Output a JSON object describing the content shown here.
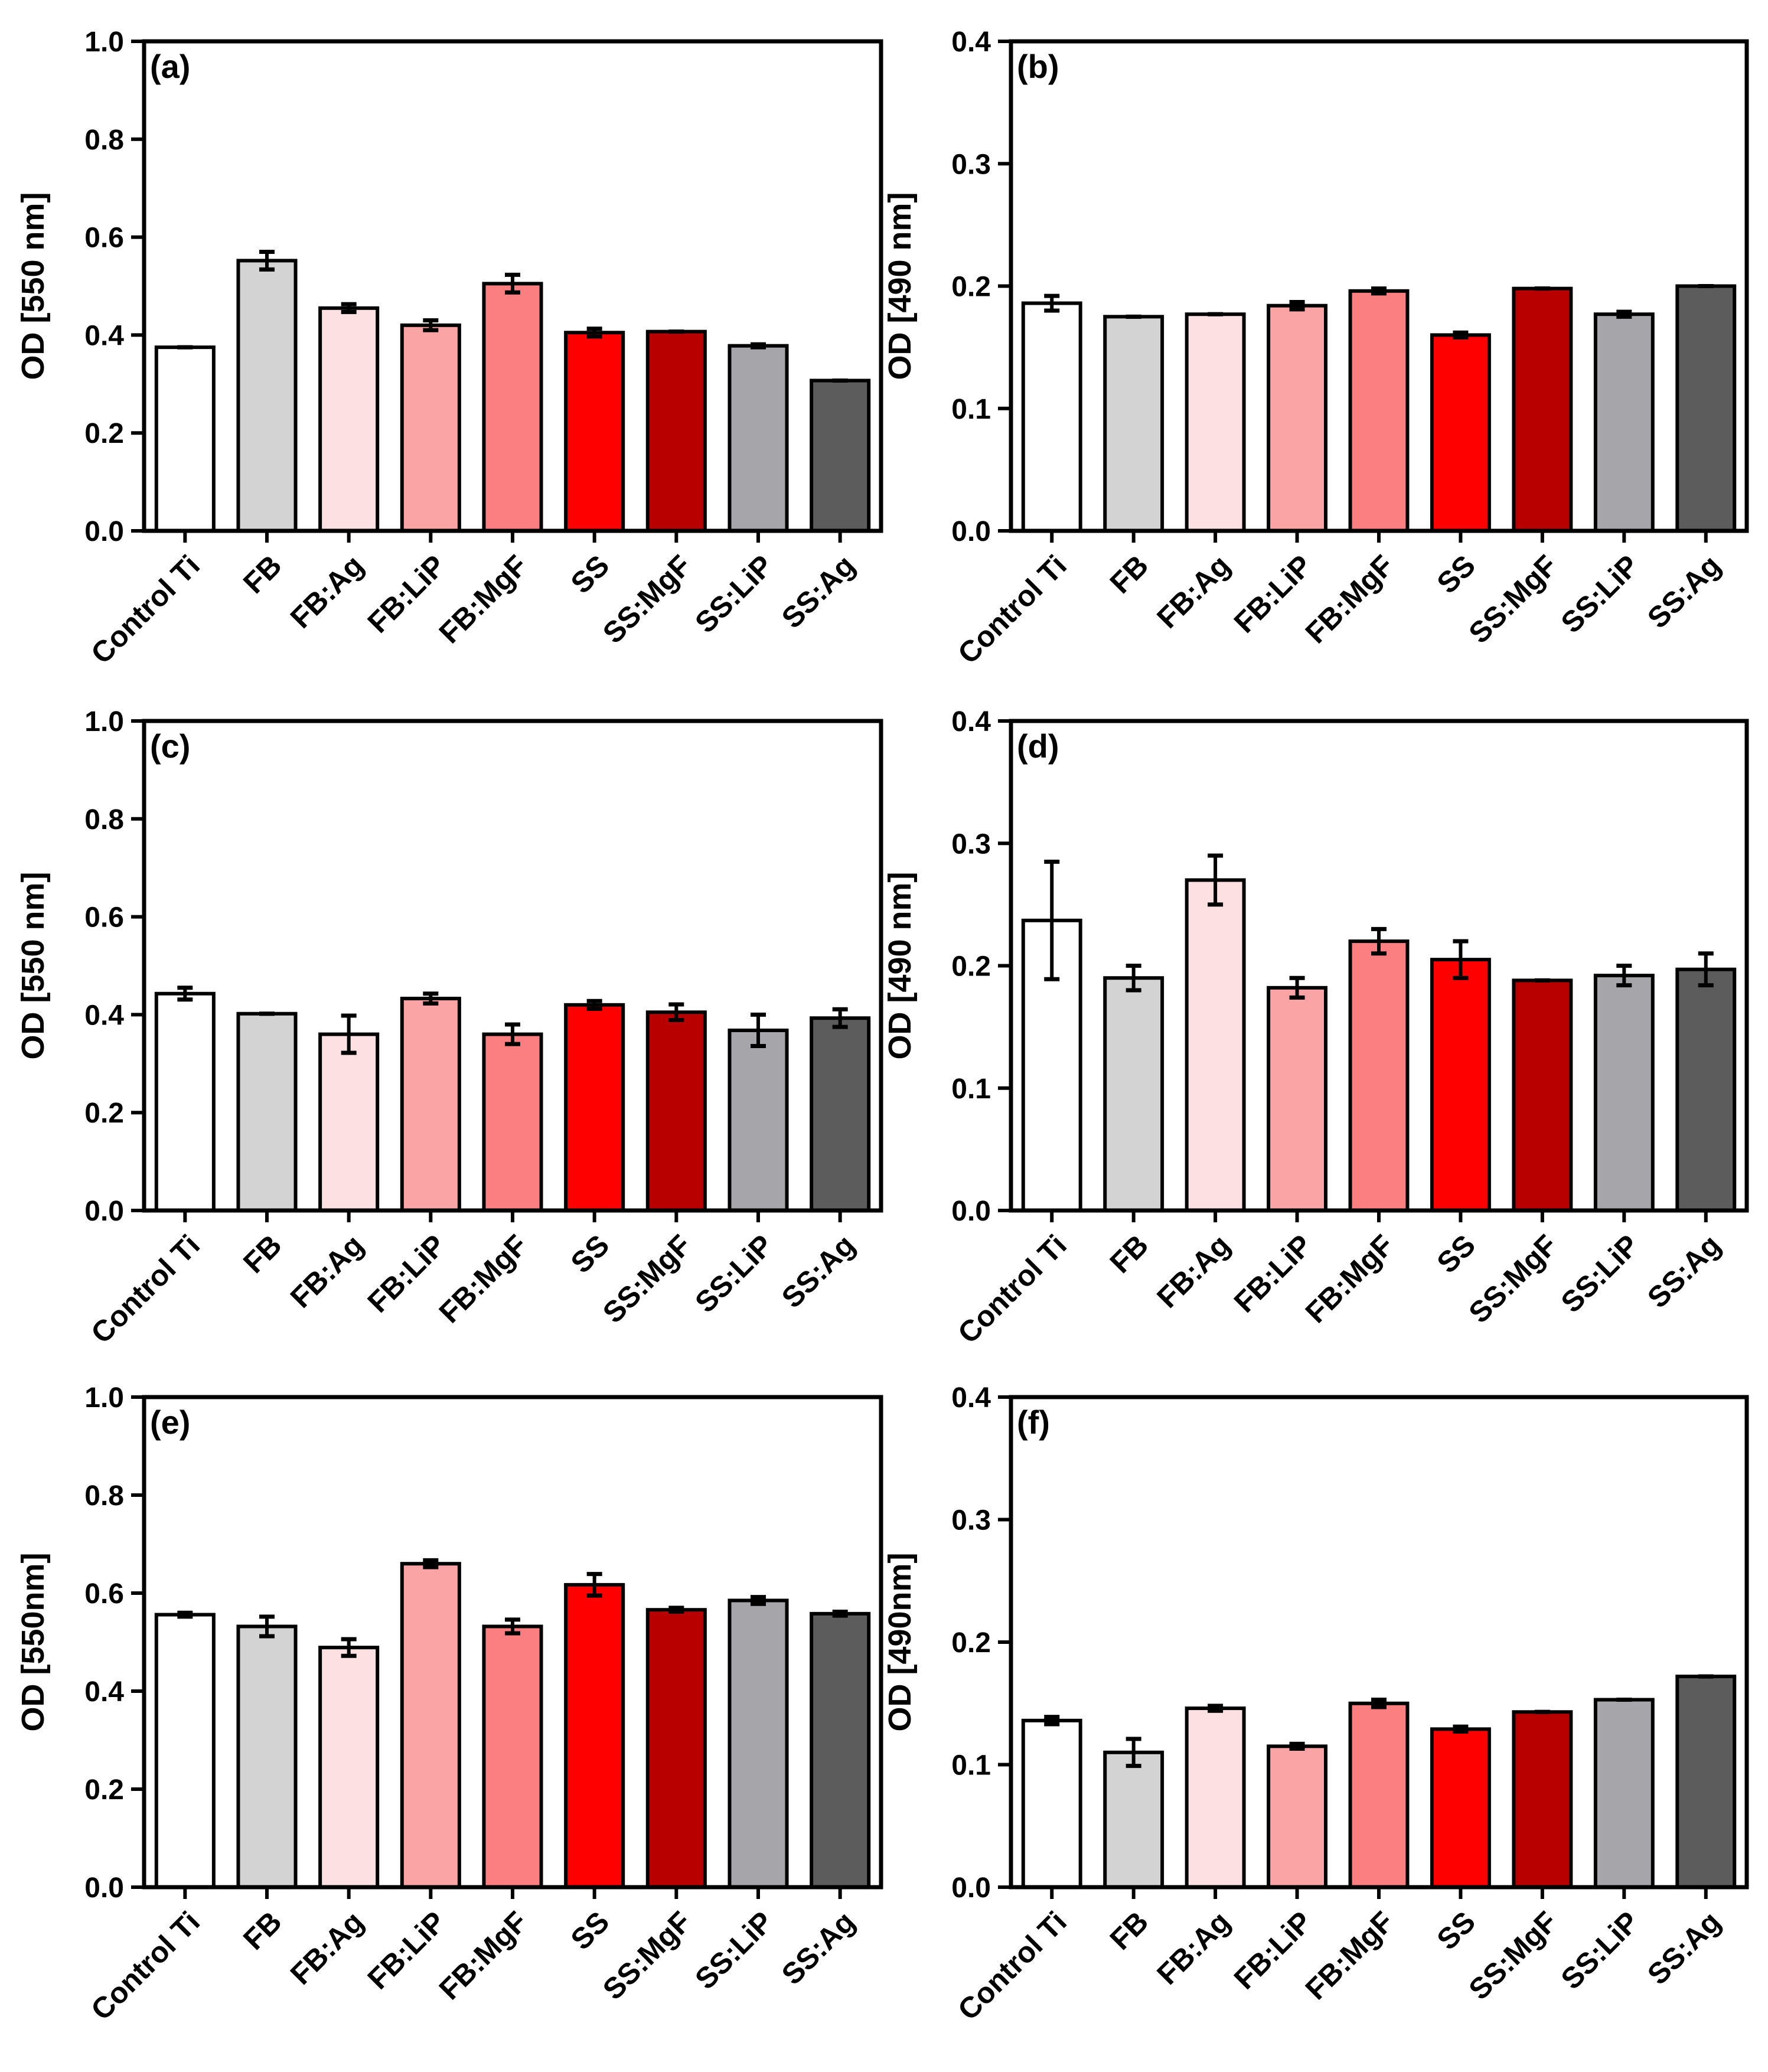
{
  "figure": {
    "categories": [
      "Control Ti",
      "FB",
      "FB:Ag",
      "FB:LiP",
      "FB:MgF",
      "SS",
      "SS:MgF",
      "SS:LiP",
      "SS:Ag"
    ],
    "colors": [
      "#ffffff",
      "#d3d3d3",
      "#fde0e2",
      "#fba4a6",
      "#fb7f80",
      "#fe0000",
      "#b80000",
      "#a6a5aa",
      "#5c5c5c"
    ]
  },
  "chart_data": [
    {
      "panel": "(a)",
      "type": "bar",
      "title": "",
      "xlabel": "",
      "ylabel": "OD [550 nm]",
      "ylim": [
        0,
        1.0
      ],
      "yticks": [
        "0.0",
        "0.2",
        "0.4",
        "0.6",
        "0.8",
        "1.0"
      ],
      "values": [
        0.375,
        0.552,
        0.455,
        0.42,
        0.505,
        0.405,
        0.407,
        0.378,
        0.307
      ],
      "errors": [
        0.0,
        0.018,
        0.008,
        0.01,
        0.018,
        0.008,
        0.0,
        0.003,
        0.0
      ]
    },
    {
      "panel": "(b)",
      "type": "bar",
      "title": "",
      "xlabel": "",
      "ylabel": "OD [490 nm]",
      "ylim": [
        0,
        0.4
      ],
      "yticks": [
        "0.0",
        "0.1",
        "0.2",
        "0.3",
        "0.4"
      ],
      "values": [
        0.186,
        0.175,
        0.177,
        0.184,
        0.196,
        0.16,
        0.198,
        0.177,
        0.2
      ],
      "errors": [
        0.006,
        0.0,
        0.0,
        0.003,
        0.002,
        0.002,
        0.0,
        0.002,
        0.0
      ]
    },
    {
      "panel": "(c)",
      "type": "bar",
      "title": "",
      "xlabel": "",
      "ylabel": "OD [550 nm]",
      "ylim": [
        0,
        1.0
      ],
      "yticks": [
        "0.0",
        "0.2",
        "0.4",
        "0.6",
        "0.8",
        "1.0"
      ],
      "values": [
        0.443,
        0.402,
        0.36,
        0.433,
        0.36,
        0.42,
        0.405,
        0.368,
        0.393
      ],
      "errors": [
        0.012,
        0.0,
        0.038,
        0.01,
        0.02,
        0.008,
        0.016,
        0.032,
        0.018
      ]
    },
    {
      "panel": "(d)",
      "type": "bar",
      "title": "",
      "xlabel": "",
      "ylabel": "OD [490 nm]",
      "ylim": [
        0,
        0.4
      ],
      "yticks": [
        "0.0",
        "0.1",
        "0.2",
        "0.3",
        "0.4"
      ],
      "values": [
        0.237,
        0.19,
        0.27,
        0.182,
        0.22,
        0.205,
        0.188,
        0.192,
        0.197
      ],
      "errors": [
        0.048,
        0.01,
        0.02,
        0.008,
        0.01,
        0.015,
        0.0,
        0.008,
        0.013
      ]
    },
    {
      "panel": "(e)",
      "type": "bar",
      "title": "",
      "xlabel": "",
      "ylabel": "OD [550nm]",
      "ylim": [
        0,
        1.0
      ],
      "yticks": [
        "0.0",
        "0.2",
        "0.4",
        "0.6",
        "0.8",
        "1.0"
      ],
      "values": [
        0.556,
        0.532,
        0.489,
        0.66,
        0.532,
        0.617,
        0.566,
        0.585,
        0.558
      ],
      "errors": [
        0.004,
        0.02,
        0.017,
        0.007,
        0.014,
        0.022,
        0.004,
        0.007,
        0.004
      ]
    },
    {
      "panel": "(f)",
      "type": "bar",
      "title": "",
      "xlabel": "",
      "ylabel": "OD [490nm]",
      "ylim": [
        0,
        0.4
      ],
      "yticks": [
        "0.0",
        "0.1",
        "0.2",
        "0.3",
        "0.4"
      ],
      "values": [
        0.136,
        0.11,
        0.146,
        0.115,
        0.15,
        0.129,
        0.143,
        0.153,
        0.172
      ],
      "errors": [
        0.003,
        0.011,
        0.002,
        0.002,
        0.003,
        0.002,
        0.0,
        0.0,
        0.0
      ]
    }
  ]
}
